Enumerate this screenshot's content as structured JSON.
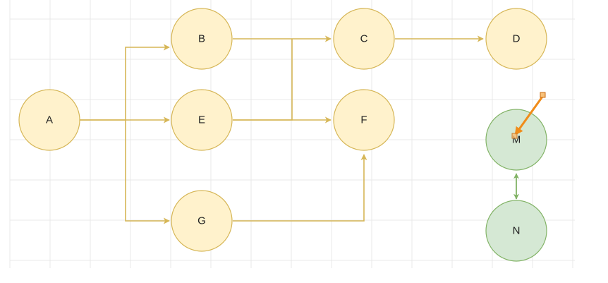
{
  "diagram": {
    "nodes": {
      "a": {
        "label": "A"
      },
      "b": {
        "label": "B"
      },
      "c": {
        "label": "C"
      },
      "d": {
        "label": "D"
      },
      "e": {
        "label": "E"
      },
      "f": {
        "label": "F"
      },
      "g": {
        "label": "G"
      },
      "m": {
        "label": "M"
      },
      "n": {
        "label": "N"
      }
    },
    "colors": {
      "yellow_fill": "#fff2cc",
      "yellow_stroke": "#d6b656",
      "green_fill": "#d5e8d4",
      "green_stroke": "#82b366",
      "selection_arrow": "#f08c1a",
      "grid": "#e9e9e9"
    }
  }
}
